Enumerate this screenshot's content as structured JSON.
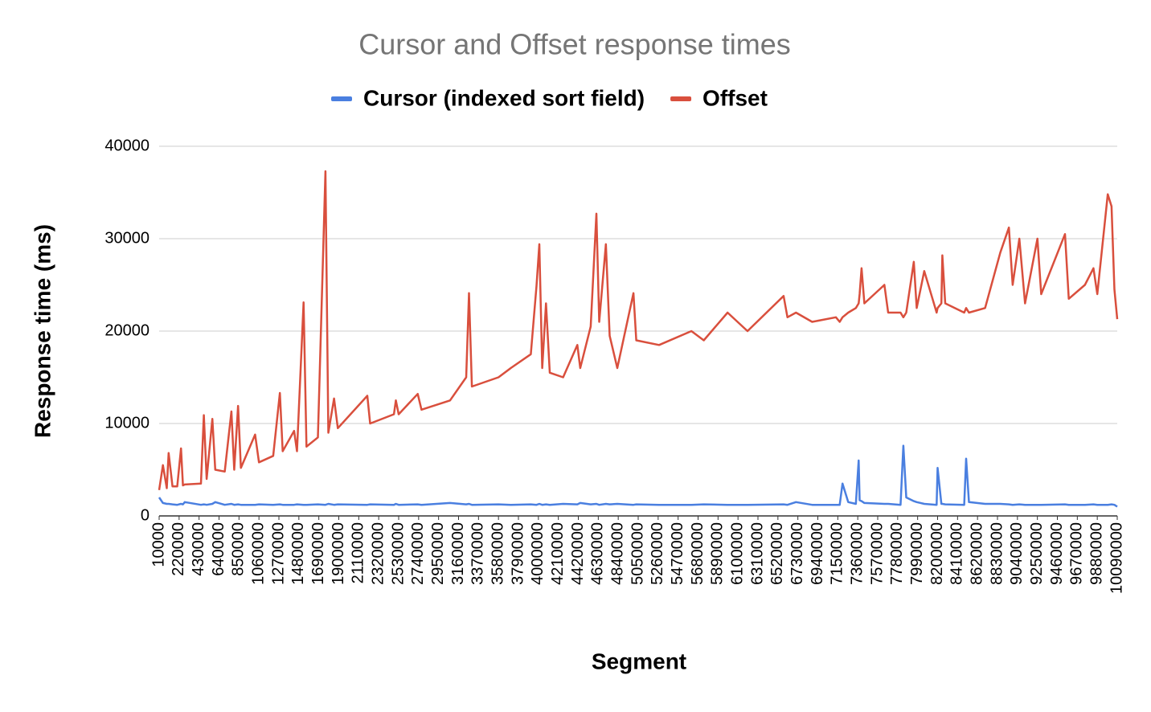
{
  "chart_data": {
    "type": "line",
    "title": "Cursor and Offset response times",
    "x_label": "Segment",
    "y_label": "Response time (ms)",
    "x": [
      10000,
      50000,
      90000,
      110000,
      150000,
      200000,
      240000,
      260000,
      280000,
      450000,
      480000,
      510000,
      570000,
      600000,
      700000,
      770000,
      800000,
      840000,
      870000,
      1020000,
      1060000,
      1210000,
      1280000,
      1310000,
      1430000,
      1460000,
      1530000,
      1560000,
      1680000,
      1760000,
      1790000,
      1850000,
      1890000,
      2200000,
      2230000,
      2480000,
      2500000,
      2530000,
      2730000,
      2770000,
      3070000,
      3240000,
      3270000,
      3300000,
      3580000,
      3710000,
      3920000,
      3980000,
      4010000,
      4040000,
      4080000,
      4120000,
      4260000,
      4410000,
      4440000,
      4550000,
      4610000,
      4640000,
      4710000,
      4750000,
      4830000,
      5000000,
      5030000,
      5270000,
      5610000,
      5740000,
      5990000,
      6200000,
      6580000,
      6620000,
      6710000,
      6880000,
      7130000,
      7170000,
      7200000,
      7260000,
      7340000,
      7370000,
      7380000,
      7400000,
      7430000,
      7640000,
      7680000,
      7810000,
      7840000,
      7870000,
      7950000,
      7980000,
      8060000,
      8190000,
      8200000,
      8240000,
      8250000,
      8280000,
      8480000,
      8500000,
      8530000,
      8700000,
      8860000,
      8950000,
      8990000,
      9060000,
      9120000,
      9250000,
      9290000,
      9540000,
      9580000,
      9750000,
      9840000,
      9880000,
      9990000,
      10030000,
      10060000,
      10090000
    ],
    "series": [
      {
        "name": "Cursor (indexed sort field)",
        "color": "#4a7fe0",
        "values": [
          2000,
          1400,
          1300,
          1300,
          1250,
          1200,
          1300,
          1250,
          1500,
          1200,
          1250,
          1200,
          1300,
          1500,
          1200,
          1300,
          1200,
          1250,
          1200,
          1200,
          1250,
          1200,
          1250,
          1200,
          1200,
          1250,
          1200,
          1200,
          1250,
          1200,
          1300,
          1200,
          1250,
          1200,
          1250,
          1200,
          1300,
          1200,
          1250,
          1200,
          1400,
          1250,
          1300,
          1200,
          1250,
          1200,
          1250,
          1200,
          1300,
          1200,
          1250,
          1200,
          1300,
          1250,
          1400,
          1250,
          1300,
          1200,
          1300,
          1250,
          1300,
          1200,
          1250,
          1200,
          1200,
          1250,
          1200,
          1200,
          1250,
          1200,
          1500,
          1200,
          1200,
          1200,
          3500,
          1500,
          1300,
          6000,
          1700,
          1600,
          1400,
          1300,
          1300,
          1200,
          7600,
          2000,
          1600,
          1500,
          1300,
          1200,
          5200,
          1300,
          1300,
          1250,
          1200,
          6200,
          1500,
          1300,
          1300,
          1250,
          1200,
          1250,
          1200,
          1200,
          1200,
          1250,
          1200,
          1200,
          1250,
          1200,
          1200,
          1250,
          1200,
          1000
        ]
      },
      {
        "name": "Offset",
        "color": "#d94f3d",
        "values": [
          2800,
          5500,
          3000,
          6800,
          3200,
          3200,
          7300,
          3300,
          3400,
          3500,
          10900,
          4000,
          10500,
          5000,
          4800,
          11300,
          5000,
          11900,
          5200,
          8800,
          5800,
          6500,
          13300,
          7000,
          9200,
          7000,
          23100,
          7500,
          8500,
          37300,
          9000,
          12700,
          9500,
          13000,
          10000,
          11000,
          12500,
          11000,
          13200,
          11500,
          12500,
          15000,
          24100,
          14000,
          15000,
          16000,
          17500,
          24900,
          29400,
          16000,
          23000,
          15500,
          15000,
          18500,
          16000,
          20500,
          32700,
          21000,
          29400,
          19500,
          16000,
          24100,
          19000,
          18500,
          20000,
          19000,
          22000,
          20000,
          23800,
          21500,
          22000,
          21000,
          21500,
          21000,
          21500,
          22000,
          22500,
          23000,
          24000,
          26800,
          23000,
          25000,
          22000,
          22000,
          21500,
          22000,
          27500,
          22500,
          26500,
          22000,
          22500,
          23000,
          28200,
          23000,
          22000,
          22500,
          22000,
          22500,
          28500,
          31200,
          25000,
          30000,
          23000,
          30000,
          24000,
          30500,
          23500,
          25000,
          26800,
          24000,
          34800,
          33500,
          24500,
          21300
        ]
      }
    ],
    "xlim": [
      10000,
      10090000
    ],
    "xticks": [
      10000,
      220000,
      430000,
      640000,
      850000,
      1060000,
      1270000,
      1480000,
      1690000,
      1900000,
      2110000,
      2320000,
      2530000,
      2740000,
      2950000,
      3160000,
      3370000,
      3580000,
      3790000,
      4000000,
      4210000,
      4420000,
      4630000,
      4840000,
      5050000,
      5260000,
      5470000,
      5680000,
      5890000,
      6100000,
      6310000,
      6520000,
      6730000,
      6940000,
      7150000,
      7360000,
      7570000,
      7780000,
      7990000,
      8200000,
      8410000,
      8620000,
      8830000,
      9040000,
      9250000,
      9460000,
      9670000,
      9880000,
      10090000
    ],
    "ylim": [
      0,
      40000
    ],
    "yticks": [
      0,
      10000,
      20000,
      30000,
      40000
    ],
    "grid": true
  }
}
